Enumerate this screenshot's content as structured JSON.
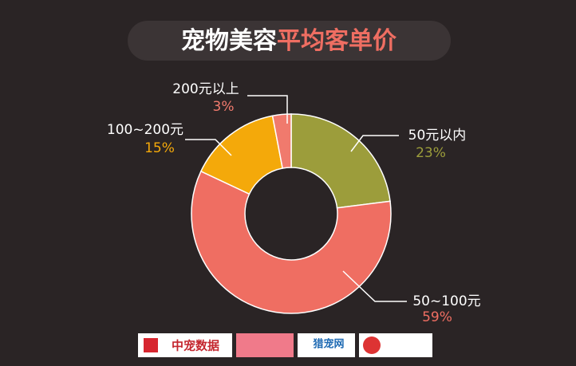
{
  "chart_data": {
    "type": "donut",
    "title": {
      "main": "宠物美容",
      "highlight": "平均客单价"
    },
    "categories": [
      "50元以内",
      "50~100元",
      "100~200元",
      "200元以上"
    ],
    "values": [
      23,
      59,
      15,
      3
    ],
    "value_labels": [
      "23%",
      "59%",
      "15%",
      "3%"
    ],
    "colors": [
      "#9c9d3b",
      "#ef6e62",
      "#f4a90a",
      "#f07a6d"
    ],
    "sources": [
      "中宠数据",
      "猎宠网"
    ]
  }
}
